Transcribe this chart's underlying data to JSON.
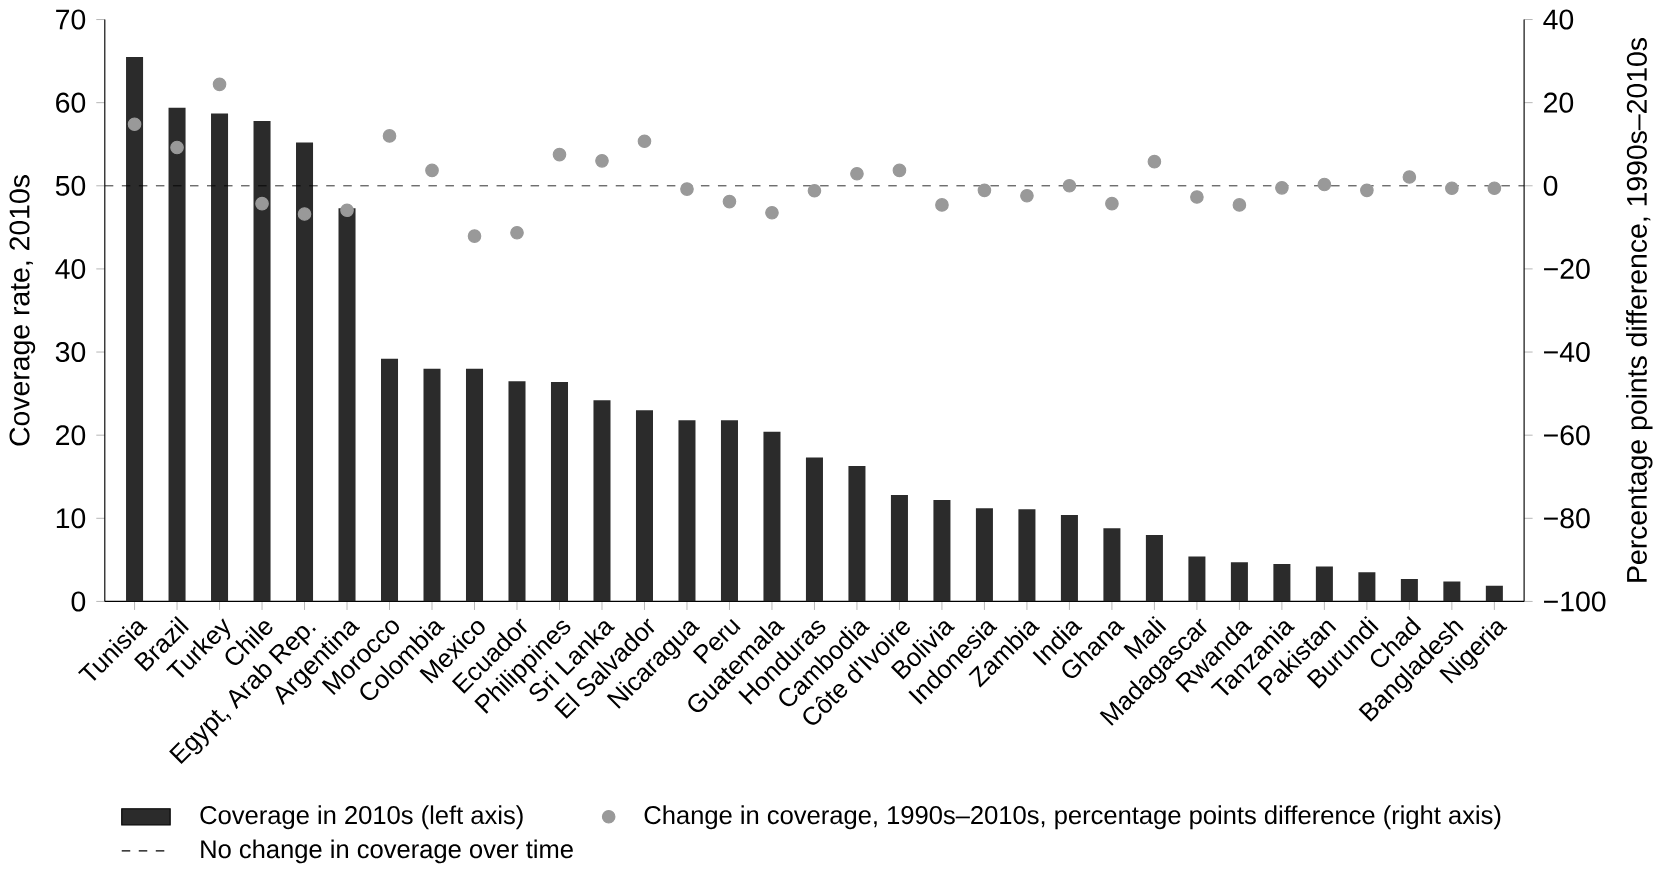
{
  "chart_data": {
    "type": "bar",
    "ylabel": "Coverage rate, 2010s",
    "y2label": "Percentage points difference, 1990s–2010s",
    "categories": [
      "Tunisia",
      "Brazil",
      "Turkey",
      "Chile",
      "Egypt, Arab Rep.",
      "Argentina",
      "Morocco",
      "Colombia",
      "Mexico",
      "Ecuador",
      "Philippines",
      "Sri Lanka",
      "El Salvador",
      "Nicaragua",
      "Peru",
      "Guatemala",
      "Honduras",
      "Cambodia",
      "Côte d'Ivoire",
      "Bolivia",
      "Indonesia",
      "Zambia",
      "India",
      "Ghana",
      "Mali",
      "Madagascar",
      "Rwanda",
      "Tanzania",
      "Pakistan",
      "Burundi",
      "Chad",
      "Bangladesh",
      "Nigeria"
    ],
    "series": [
      {
        "name": "Coverage in 2010s (left axis)",
        "color": "#2b2b2b",
        "values": [
          65.5,
          59.4,
          58.7,
          57.8,
          55.2,
          47.3,
          29.2,
          28.0,
          28.0,
          26.5,
          26.4,
          24.2,
          23.0,
          21.8,
          21.8,
          20.4,
          17.3,
          16.3,
          12.8,
          12.2,
          11.2,
          11.1,
          10.4,
          8.8,
          8.0,
          5.4,
          4.7,
          4.5,
          4.2,
          3.5,
          2.7,
          2.4,
          1.9
        ]
      },
      {
        "name": "Change in coverage, 1990s–2010s, percentage points difference (right axis)",
        "type": "scatter",
        "axis": "y2",
        "color": "#999999",
        "values": [
          14.8,
          9.2,
          24.4,
          -4.3,
          -6.8,
          -5.9,
          12.0,
          3.7,
          -12.1,
          -11.3,
          7.5,
          6.0,
          10.7,
          -0.8,
          -3.8,
          -6.5,
          -1.2,
          2.9,
          3.7,
          -4.6,
          -1.1,
          -2.4,
          0.0,
          -4.3,
          5.8,
          -2.7,
          -4.6,
          -0.5,
          0.3,
          -1.1,
          2.1,
          -0.6,
          -0.6
        ]
      }
    ],
    "ylim": [
      0,
      70
    ],
    "yticks": [
      0,
      10,
      20,
      30,
      40,
      50,
      60,
      70
    ],
    "y2lim": [
      -100,
      40
    ],
    "y2ticks": [
      {
        "value": -100,
        "label": "−100"
      },
      {
        "value": -80,
        "label": "−80"
      },
      {
        "value": -60,
        "label": "−60"
      },
      {
        "value": -40,
        "label": "−40"
      },
      {
        "value": -20,
        "label": "−20"
      },
      0,
      20,
      40
    ],
    "ref_lines": [
      {
        "axis": "y2",
        "value": 0,
        "label": "No change in coverage over time",
        "line_style": "dashed",
        "color": "#000000"
      }
    ],
    "marker": "circle",
    "legend": "bottom"
  }
}
